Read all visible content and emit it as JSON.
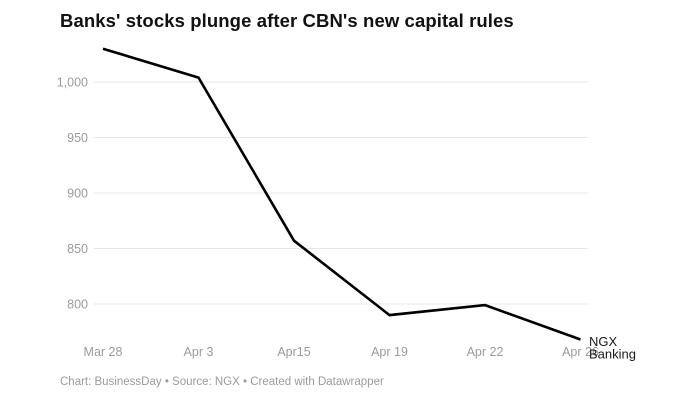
{
  "chart": {
    "title": "Banks' stocks plunge after CBN's new capital rules"
  },
  "footer": {
    "credit": "Chart: BusinessDay • Source: NGX • Created with Datawrapper"
  },
  "chart_data": {
    "type": "line",
    "title": "Banks' stocks plunge after CBN's new capital rules",
    "categories": [
      "Mar 28",
      "Apr 3",
      "Apr15",
      "Apr 19",
      "Apr 22",
      "Apr 26"
    ],
    "series": [
      {
        "name": "NGX Banking",
        "values": [
          1030,
          1004,
          857,
          790,
          799,
          768
        ]
      }
    ],
    "legend_lines": [
      "NGX",
      "Banking"
    ],
    "legend_position": "right-end-of-line",
    "xlabel": "",
    "ylabel": "",
    "ylim": [
      755,
      1040
    ],
    "yticks": [
      {
        "value": 800,
        "label": "800"
      },
      {
        "value": 850,
        "label": "850"
      },
      {
        "value": 900,
        "label": "900"
      },
      {
        "value": 950,
        "label": "950"
      },
      {
        "value": 1000,
        "label": "1,000"
      }
    ],
    "grid": "horizontal-only",
    "colors": {
      "line": "#000000",
      "grid": "#e7e7e7",
      "tick_text": "#9b9b9b",
      "title_text": "#111111",
      "legend_text": "#1a1a1a",
      "background": "#ffffff"
    }
  }
}
